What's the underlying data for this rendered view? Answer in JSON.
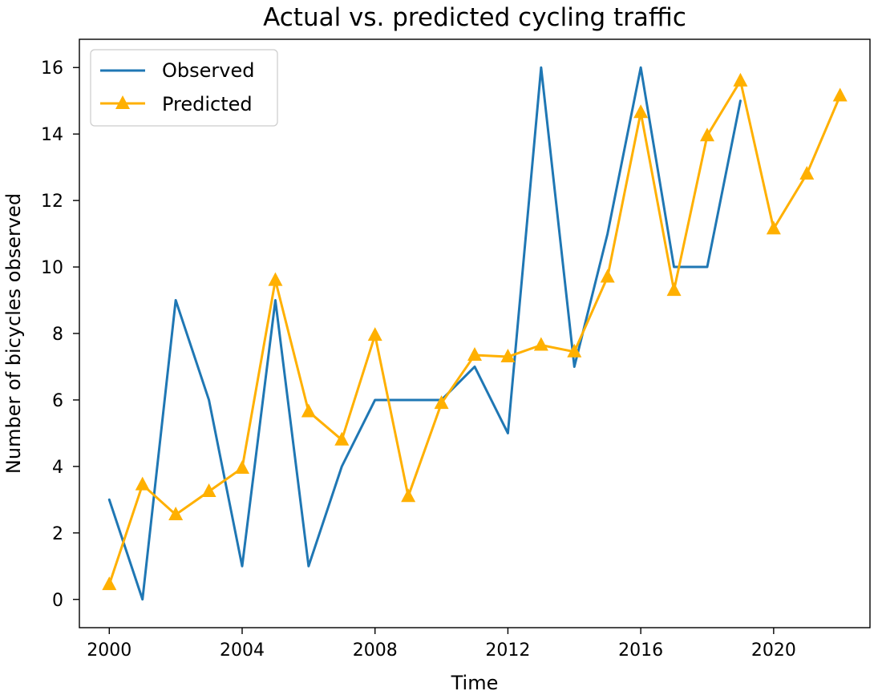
{
  "chart_data": {
    "type": "line",
    "title": "Actual vs. predicted cycling traffic",
    "xlabel": "Time",
    "ylabel": "Number of bicycles observed",
    "xlim": [
      1999.1,
      2022.9
    ],
    "ylim": [
      -0.85,
      16.85
    ],
    "x_ticks": [
      2000,
      2004,
      2008,
      2012,
      2016,
      2020
    ],
    "y_ticks": [
      0,
      2,
      4,
      6,
      8,
      10,
      12,
      14,
      16
    ],
    "grid": false,
    "legend": "top-left",
    "series": [
      {
        "name": "Observed",
        "color": "#1f77b4",
        "marker": "none",
        "x": [
          2000,
          2001,
          2002,
          2003,
          2004,
          2005,
          2006,
          2007,
          2008,
          2009,
          2010,
          2011,
          2012,
          2013,
          2014,
          2015,
          2016,
          2017,
          2018,
          2019
        ],
        "values": [
          3,
          0,
          9,
          6,
          1,
          9,
          1,
          4,
          6,
          6,
          6,
          7,
          5,
          16,
          7,
          11,
          16,
          10,
          10,
          15
        ]
      },
      {
        "name": "Predicted",
        "color": "#ffb000",
        "marker": "triangle",
        "x": [
          2000,
          2001,
          2002,
          2003,
          2004,
          2005,
          2006,
          2007,
          2008,
          2009,
          2010,
          2011,
          2012,
          2013,
          2014,
          2015,
          2016,
          2017,
          2018,
          2019,
          2020,
          2021,
          2022
        ],
        "values": [
          0.45,
          3.45,
          2.55,
          3.25,
          3.95,
          9.6,
          5.65,
          4.8,
          7.95,
          3.1,
          5.9,
          7.35,
          7.3,
          7.65,
          7.45,
          9.7,
          14.65,
          9.3,
          13.95,
          15.6,
          11.15,
          12.8,
          15.15
        ]
      }
    ]
  }
}
